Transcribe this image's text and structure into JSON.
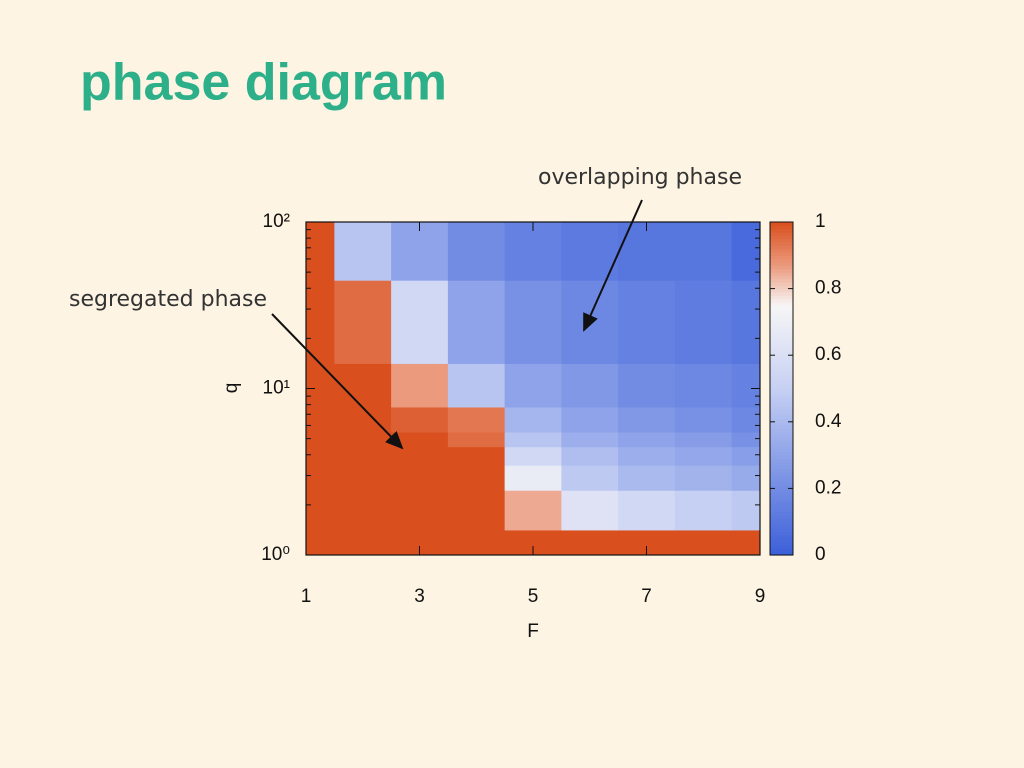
{
  "header": {
    "title": "phase diagram"
  },
  "chart_data": {
    "type": "heatmap",
    "x_label": "F",
    "y_label": "q",
    "x": [
      1,
      2,
      3,
      4,
      5,
      6,
      7,
      8,
      9
    ],
    "y": [
      1,
      2,
      3,
      4,
      5,
      6,
      10,
      20,
      100
    ],
    "z": [
      [
        1,
        1,
        1,
        1,
        1,
        1,
        1,
        1,
        1
      ],
      [
        1,
        1,
        1,
        1,
        0.85,
        0.62,
        0.55,
        0.5,
        0.47
      ],
      [
        1,
        1,
        1,
        1,
        0.68,
        0.47,
        0.4,
        0.37,
        0.33
      ],
      [
        1,
        1,
        1,
        1,
        0.55,
        0.42,
        0.35,
        0.32,
        0.28
      ],
      [
        1,
        1,
        1,
        0.95,
        0.45,
        0.35,
        0.3,
        0.27,
        0.22
      ],
      [
        1,
        1,
        0.97,
        0.93,
        0.38,
        0.3,
        0.25,
        0.22,
        0.18
      ],
      [
        1,
        1,
        0.87,
        0.45,
        0.3,
        0.25,
        0.2,
        0.18,
        0.15
      ],
      [
        1,
        0.95,
        0.55,
        0.3,
        0.22,
        0.18,
        0.15,
        0.13,
        0.1
      ],
      [
        1,
        0.45,
        0.3,
        0.2,
        0.15,
        0.12,
        0.1,
        0.1,
        0.05
      ]
    ],
    "xlim": [
      1,
      9
    ],
    "xticks": [
      1,
      3,
      5,
      7,
      9
    ],
    "ylim": [
      1,
      100
    ],
    "ylog": true,
    "yticks": [
      {
        "value": 1,
        "label": "10⁰"
      },
      {
        "value": 10,
        "label": "10¹"
      },
      {
        "value": 100,
        "label": "10²"
      }
    ],
    "clim": [
      0,
      1
    ],
    "cticks": [
      0,
      0.2,
      0.4,
      0.6,
      0.8,
      1
    ],
    "colorscale": [
      [
        0,
        "#3b5fd9"
      ],
      [
        0.5,
        "#c6d0f3"
      ],
      [
        0.75,
        "#f7f6f6"
      ],
      [
        0.87,
        "#eb9a7d"
      ],
      [
        1,
        "#d94f1e"
      ]
    ],
    "annotations": [
      "overlapping phase",
      "segregated phase"
    ]
  }
}
